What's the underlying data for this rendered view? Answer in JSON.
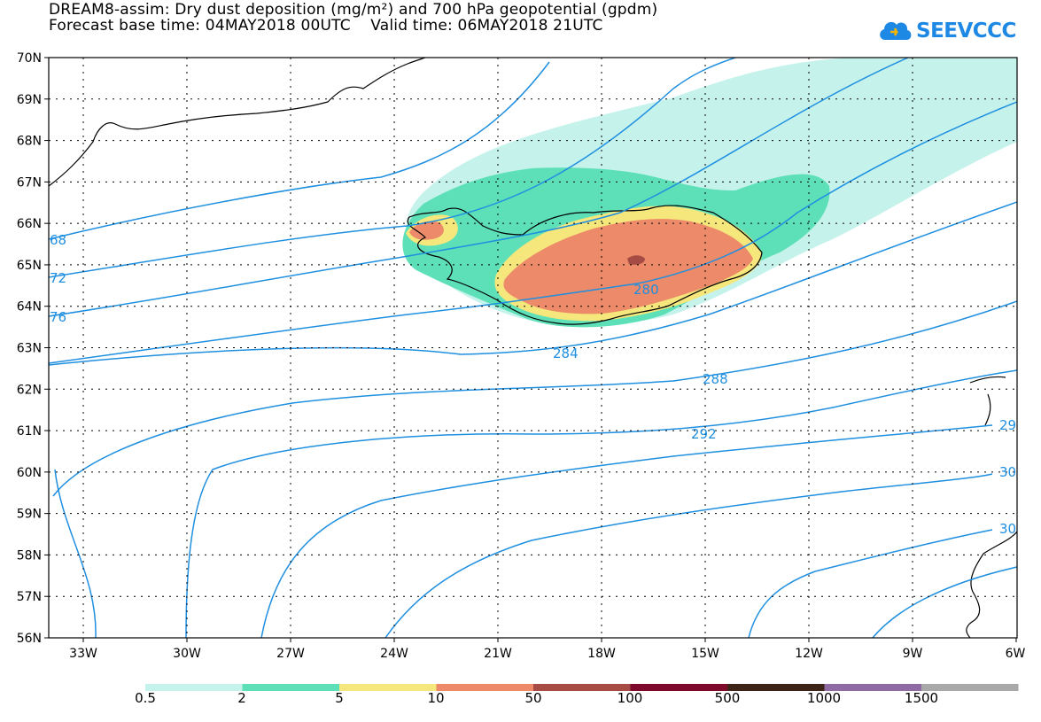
{
  "header": {
    "title_line1": "DREAM8-assim: Dry dust deposition (mg/m²) and 700 hPa geopotential (gpdm)",
    "title_line2": "Forecast base time: 04MAY2018 00UTC    Valid time: 06MAY2018 21UTC"
  },
  "logo": {
    "text": "SEEVCCC",
    "icon": "cloud-icon"
  },
  "map": {
    "lat_labels": [
      "70N",
      "69N",
      "68N",
      "67N",
      "66N",
      "65N",
      "64N",
      "63N",
      "62N",
      "61N",
      "60N",
      "59N",
      "58N",
      "57N",
      "56N"
    ],
    "lon_labels": [
      "33W",
      "30W",
      "27W",
      "24W",
      "21W",
      "18W",
      "15W",
      "12W",
      "9W",
      "6W"
    ],
    "contour_labels": [
      "68",
      "72",
      "76",
      "280",
      "284",
      "288",
      "292",
      "29",
      "30",
      "30"
    ],
    "contour_color": "#1f8fe0",
    "coastline_color": "#000000"
  },
  "colorbar": {
    "labels": [
      "0.5",
      "2",
      "5",
      "10",
      "50",
      "100",
      "500",
      "1000",
      "1500"
    ],
    "colors": [
      "#c5f3ec",
      "#5de0b7",
      "#f5e77c",
      "#ec8a69",
      "#a74c44",
      "#7d0a2a",
      "#3d2418",
      "#8e6ba3",
      "#a9a9a9"
    ]
  }
}
